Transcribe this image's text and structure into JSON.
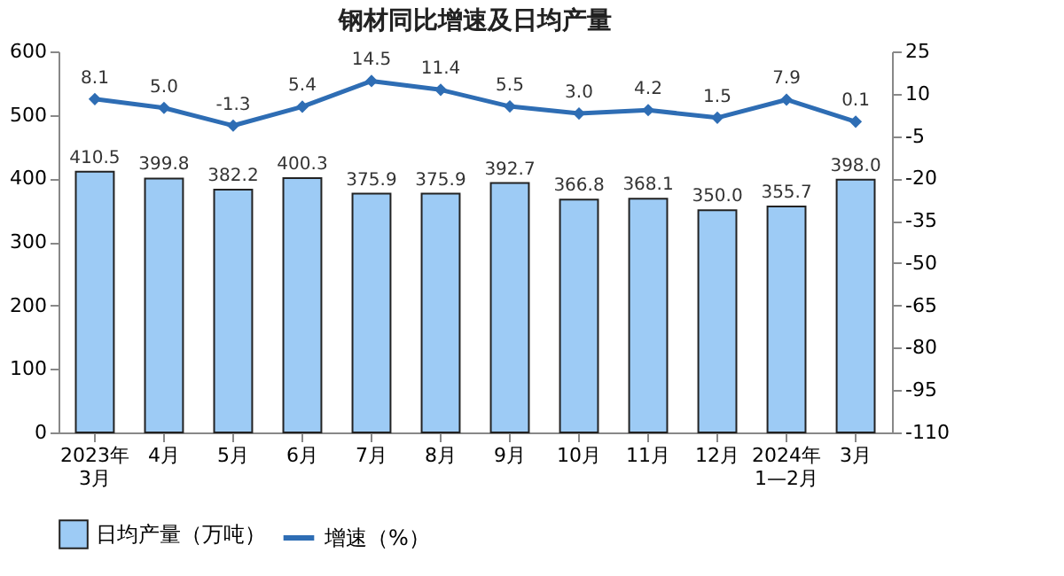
{
  "chart_data": {
    "type": "bar",
    "title": "钢材同比增速及日均产量",
    "categories": [
      "2023年\n3月",
      "4月",
      "5月",
      "6月",
      "7月",
      "8月",
      "9月",
      "10月",
      "11月",
      "12月",
      "2024年\n1—2月",
      "3月"
    ],
    "series": [
      {
        "name": "日均产量（万吨）",
        "color": "#9dcbf5",
        "values": [
          410.5,
          399.8,
          382.2,
          400.3,
          375.9,
          375.9,
          392.7,
          366.8,
          368.1,
          350.0,
          355.7,
          398.0
        ],
        "value_labels": [
          "410.5",
          "399.8",
          "382.2",
          "400.3",
          "375.9",
          "375.9",
          "392.7",
          "366.8",
          "368.1",
          "350.0",
          "355.7",
          "398.0"
        ]
      },
      {
        "name": "增速（%）",
        "type": "line",
        "axis": "y2",
        "color": "#2e6db4",
        "marker": "diamond",
        "values": [
          8.1,
          5.0,
          -1.3,
          5.4,
          14.5,
          11.4,
          5.5,
          3.0,
          4.2,
          1.5,
          7.9,
          0.1
        ],
        "value_labels": [
          "8.1",
          "5.0",
          "-1.3",
          "5.4",
          "14.5",
          "11.4",
          "5.5",
          "3.0",
          "4.2",
          "1.5",
          "7.9",
          "0.1"
        ]
      }
    ],
    "ylim": [
      0,
      600
    ],
    "yticks": [
      0,
      100,
      200,
      300,
      400,
      500,
      600
    ],
    "y2lim": [
      -110,
      25
    ],
    "y2ticks": [
      -110,
      -95,
      -80,
      -65,
      -50,
      -35,
      -20,
      -5,
      10,
      25
    ],
    "legend": "bottom",
    "grid": false
  }
}
